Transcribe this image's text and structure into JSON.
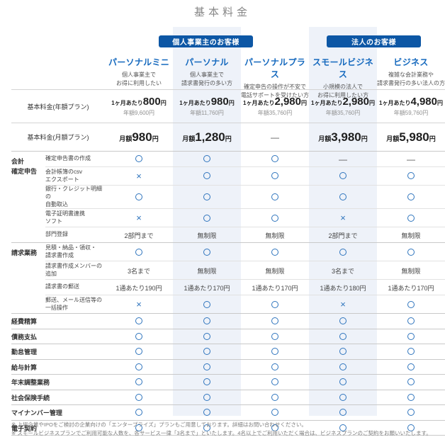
{
  "title": "基本料金",
  "colors": {
    "badge_blue": "#0d57a5",
    "plan_name_blue": "#1569be",
    "icon_blue": "#2e74bd",
    "highlight_bg": "#eef2f9"
  },
  "groups": [
    {
      "label": "個人事業主のお客様"
    },
    {
      "label": "法人のお客様"
    }
  ],
  "plans": [
    {
      "name": "パーソナルミニ",
      "desc": [
        "個人事業主で",
        "お得に利用したい"
      ],
      "highlight": false
    },
    {
      "name": "パーソナル",
      "desc": [
        "個人事業主で",
        "請求書発行の多い方"
      ],
      "highlight": true
    },
    {
      "name": "パーソナルプラス",
      "desc": [
        "確定申告の操作が不安で",
        "電話サポートを受けたい方"
      ],
      "highlight": false
    },
    {
      "name": "スモールビジネス",
      "desc": [
        "小規模の法人で",
        "お得に利用したい方"
      ],
      "highlight": true
    },
    {
      "name": "ビジネス",
      "desc": [
        "複雑な会計業務や",
        "請求書発行の多い法人の方"
      ],
      "highlight": false
    }
  ],
  "price_rows": [
    {
      "label": "基本料金(年額プラン)",
      "type": "annual",
      "cells": [
        {
          "pre": "1ヶ月あたり",
          "num": "800",
          "post": "円",
          "sub": "年額9,600円"
        },
        {
          "pre": "1ヶ月あたり",
          "num": "980",
          "post": "円",
          "sub": "年額11,760円"
        },
        {
          "pre": "1ヶ月あたり",
          "num": "2,980",
          "post": "円",
          "sub": "年額35,760円"
        },
        {
          "pre": "1ヶ月あたり",
          "num": "2,980",
          "post": "円",
          "sub": "年額35,760円"
        },
        {
          "pre": "1ヶ月あたり",
          "num": "4,980",
          "post": "円",
          "sub": "年額59,760円"
        }
      ]
    },
    {
      "label": "基本料金(月額プラン)",
      "type": "monthly",
      "cells": [
        {
          "pre": "月額",
          "num": "980",
          "post": "円"
        },
        {
          "pre": "月額",
          "num": "1,280",
          "post": "円"
        },
        {
          "dash": true
        },
        {
          "pre": "月額",
          "num": "3,980",
          "post": "円"
        },
        {
          "pre": "月額",
          "num": "5,980",
          "post": "円"
        }
      ]
    }
  ],
  "sections": [
    {
      "label": [
        "会計",
        "確定申告"
      ],
      "rows": [
        {
          "feature": [
            "確定申告書の作成"
          ],
          "values": [
            "O",
            "O",
            "O",
            "-",
            "-"
          ]
        },
        {
          "feature": [
            "会計帳簿のcsv",
            "エクスポート"
          ],
          "values": [
            "X",
            "O",
            "O",
            "O",
            "O"
          ]
        },
        {
          "feature": [
            "銀行・クレジット明細の",
            "自動取込"
          ],
          "values": [
            "O",
            "O",
            "O",
            "O",
            "O"
          ]
        },
        {
          "feature": [
            "電子証明書連携",
            "ソフト"
          ],
          "values": [
            "X",
            "O",
            "O",
            "X",
            "O"
          ]
        },
        {
          "feature": [
            "部門登録"
          ],
          "values": [
            "2部門まで",
            "無制限",
            "無制限",
            "2部門まで",
            "無制限"
          ]
        }
      ]
    },
    {
      "label": [
        "請求業務"
      ],
      "rows": [
        {
          "feature": [
            "見積・納品・領収・",
            "請求書作成"
          ],
          "values": [
            "O",
            "O",
            "O",
            "O",
            "O"
          ]
        },
        {
          "feature": [
            "請求書作成メンバーの",
            "追加"
          ],
          "values": [
            "3名まで",
            "無制限",
            "無制限",
            "3名まで",
            "無制限"
          ]
        },
        {
          "feature": [
            "請求書の郵送"
          ],
          "values": [
            "1通あたり190円",
            "1通あたり170円",
            "1通あたり170円",
            "1通あたり180円",
            "1通あたり170円"
          ]
        },
        {
          "feature": [
            "郵送、メール送信等の",
            "一括操作"
          ],
          "values": [
            "X",
            "O",
            "O",
            "X",
            "O"
          ]
        }
      ]
    }
  ],
  "simple_rows": [
    {
      "label": "経費精算",
      "values": [
        "O",
        "O",
        "O",
        "O",
        "O"
      ]
    },
    {
      "label": "債務支払",
      "values": [
        "O",
        "O",
        "O",
        "O",
        "O"
      ]
    },
    {
      "label": "勤怠管理",
      "values": [
        "O",
        "O",
        "O",
        "O",
        "O"
      ]
    },
    {
      "label": "給与計算",
      "values": [
        "O",
        "O",
        "O",
        "O",
        "O"
      ]
    },
    {
      "label": "年末調整業務",
      "values": [
        "O",
        "O",
        "O",
        "O",
        "O"
      ]
    },
    {
      "label": "社会保険手続",
      "values": [
        "O",
        "O",
        "O",
        "O",
        "O"
      ]
    },
    {
      "label": "マイナンバー管理",
      "values": [
        "O",
        "O",
        "O",
        "O",
        "O"
      ]
    },
    {
      "label": "電子契約",
      "values": [
        "O",
        "O",
        "O",
        "O",
        "O"
      ]
    }
  ],
  "notes": [
    "※ 上場企業やIPOをご検討の企業向けの「エンタープライズ」プランもご用意しております。詳細はお問い合わせください。",
    "※ スモールビジネスプランでご利用可能な人数を、各サービス一律「3名まで」といたします。4名以上でご利用いただく場合は、ビジネスプランのご契約をお願いいたします。"
  ]
}
